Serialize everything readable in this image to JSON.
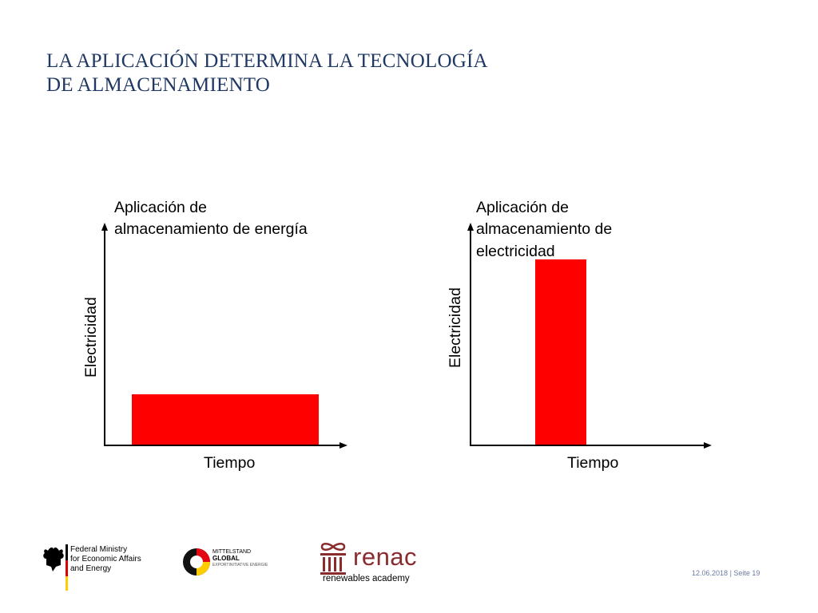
{
  "slide": {
    "title_line1": "LA APLICACIÓN DETERMINA LA TECNOLOGÍA",
    "title_line2": "DE ALMACENAMIENTO"
  },
  "diagrams": [
    {
      "label_lines": [
        "Aplicación de",
        "almacenamiento de energía"
      ],
      "y_axis_label": "Electricidad",
      "x_axis_label": "Tiempo",
      "bar": {
        "electricity_level": "low",
        "duration": "long",
        "color": "#ff0000"
      }
    },
    {
      "label_lines": [
        "Aplicación de",
        "almacenamiento de",
        "electricidad"
      ],
      "y_axis_label": "Electricidad",
      "x_axis_label": "Tiempo",
      "bar": {
        "electricity_level": "high",
        "duration": "short",
        "color": "#ff0000"
      }
    }
  ],
  "footer": {
    "bmwi_lines": [
      "Federal Ministry",
      "for Economic Affairs",
      "and Energy"
    ],
    "mittelstand_line1": "MITTELSTAND",
    "mittelstand_line2": "GLOBAL",
    "mittelstand_line3": "EXPORTINITIATIVE ENERGIE",
    "renac_name": "renac",
    "renac_sub": "renewables academy",
    "date": "12.06.2018",
    "page": "Seite 19"
  }
}
